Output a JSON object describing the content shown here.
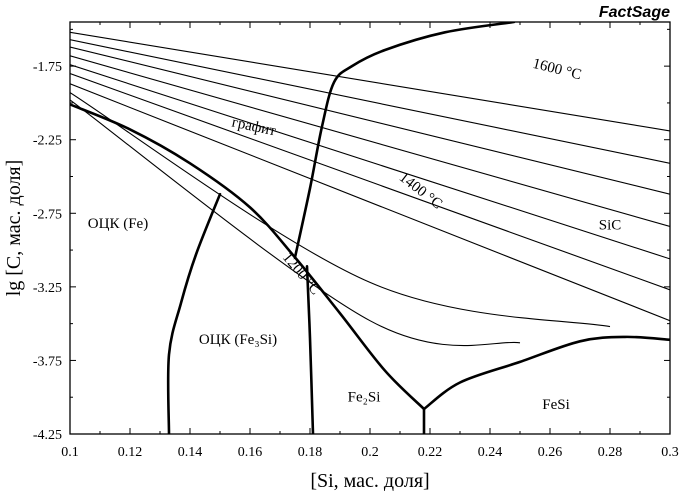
{
  "brand": "FactSage",
  "chart_data": {
    "type": "line",
    "xlabel": "[Si, мас. доля]",
    "ylabel": "lg [C, мас. доля]",
    "xlim": [
      0.1,
      0.3
    ],
    "ylim": [
      -4.25,
      -1.45
    ],
    "x_ticks": [
      0.1,
      0.12,
      0.14,
      0.16,
      0.18,
      0.2,
      0.22,
      0.24,
      0.26,
      0.28,
      0.3
    ],
    "x_tick_labels": [
      "0.1",
      "0.12",
      "0.14",
      "0.16",
      "0.18",
      "0.2",
      "0.22",
      "0.24",
      "0.26",
      "0.28",
      "0.3"
    ],
    "y_ticks": [
      -1.75,
      -2.25,
      -2.75,
      -3.25,
      -3.75,
      -4.25
    ],
    "y_tick_labels": [
      "-1.75",
      "-2.25",
      "-2.75",
      "-3.25",
      "-3.75",
      "-4.25"
    ],
    "isotherms": [
      {
        "points": [
          [
            0.1,
            -1.52
          ],
          [
            0.3,
            -2.19
          ]
        ]
      },
      {
        "points": [
          [
            0.1,
            -1.57
          ],
          [
            0.3,
            -2.41
          ]
        ]
      },
      {
        "points": [
          [
            0.1,
            -1.62
          ],
          [
            0.3,
            -2.62
          ]
        ]
      },
      {
        "points": [
          [
            0.1,
            -1.68
          ],
          [
            0.3,
            -2.84
          ]
        ]
      },
      {
        "points": [
          [
            0.1,
            -1.74
          ],
          [
            0.3,
            -3.06
          ]
        ]
      },
      {
        "points": [
          [
            0.1,
            -1.8
          ],
          [
            0.3,
            -3.27
          ]
        ]
      },
      {
        "points": [
          [
            0.1,
            -1.87
          ],
          [
            0.3,
            -3.48
          ]
        ]
      },
      {
        "points": [
          [
            0.1,
            -1.93
          ],
          [
            0.2,
            -3.22
          ],
          [
            0.28,
            -3.52
          ]
        ]
      },
      {
        "points": [
          [
            0.1,
            -1.98
          ],
          [
            0.2,
            -3.48
          ],
          [
            0.25,
            -3.63
          ]
        ]
      }
    ],
    "phase_boundaries": [
      {
        "points": [
          [
            0.1,
            -2.01
          ],
          [
            0.12,
            -2.18
          ],
          [
            0.14,
            -2.41
          ],
          [
            0.16,
            -2.71
          ],
          [
            0.175,
            -3.05
          ],
          [
            0.19,
            -3.43
          ],
          [
            0.205,
            -3.82
          ],
          [
            0.218,
            -4.08
          ]
        ]
      },
      {
        "points": [
          [
            0.175,
            -3.05
          ],
          [
            0.18,
            -2.58
          ],
          [
            0.184,
            -2.16
          ],
          [
            0.188,
            -1.86
          ],
          [
            0.194,
            -1.75
          ],
          [
            0.205,
            -1.64
          ],
          [
            0.225,
            -1.52
          ],
          [
            0.248,
            -1.45
          ]
        ]
      },
      {
        "points": [
          [
            0.218,
            -4.08
          ],
          [
            0.23,
            -3.9
          ],
          [
            0.25,
            -3.76
          ],
          [
            0.27,
            -3.62
          ],
          [
            0.285,
            -3.59
          ],
          [
            0.3,
            -3.61
          ]
        ]
      },
      {
        "points": [
          [
            0.218,
            -4.08
          ],
          [
            0.218,
            -4.25
          ]
        ]
      },
      {
        "points": [
          [
            0.133,
            -4.25
          ],
          [
            0.133,
            -3.71
          ],
          [
            0.137,
            -3.36
          ],
          [
            0.142,
            -3.03
          ],
          [
            0.15,
            -2.62
          ]
        ]
      },
      {
        "points": [
          [
            0.179,
            -3.11
          ],
          [
            0.18,
            -3.6
          ],
          [
            0.181,
            -4.25
          ]
        ]
      }
    ],
    "annotations": [
      {
        "text": "1600 °C",
        "x": 0.262,
        "y": -1.8,
        "angle": 14
      },
      {
        "text": "1400 °C",
        "x": 0.216,
        "y": -2.62,
        "angle": 38
      },
      {
        "text": "1200 °C",
        "x": 0.176,
        "y": -3.18,
        "angle": 50
      },
      {
        "text": "графит",
        "x": 0.161,
        "y": -2.19,
        "angle": 12
      },
      {
        "text": "ОЦК (Fe)",
        "x": 0.116,
        "y": -2.85,
        "angle": 0
      },
      {
        "text": "ОЦК (Fe₃Si)",
        "x": 0.156,
        "y": -3.64,
        "angle": 0
      },
      {
        "text": "SiC",
        "x": 0.28,
        "y": -2.86,
        "angle": 0
      },
      {
        "text": "Fe₂Si",
        "x": 0.198,
        "y": -4.03,
        "angle": 0
      },
      {
        "text": "FeSi",
        "x": 0.262,
        "y": -4.08,
        "angle": 0
      }
    ]
  }
}
